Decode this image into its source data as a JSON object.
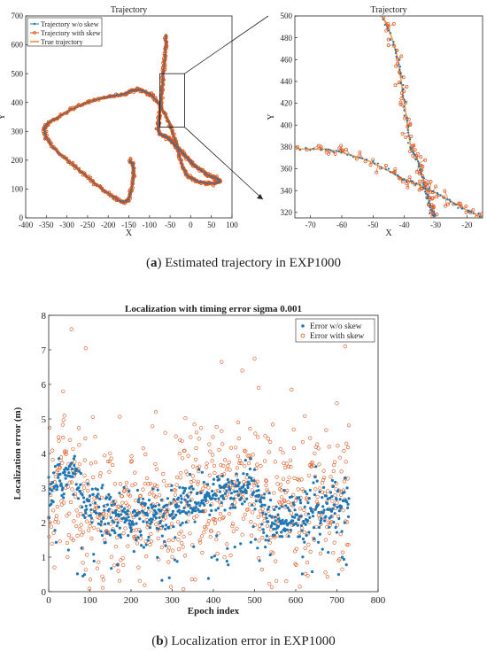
{
  "captions": {
    "a_tag": "a",
    "a_text": " Estimated trajectory in EXP1000",
    "b_tag": "b",
    "b_text": " Localization error in EXP1000"
  },
  "colors": {
    "wo_skew": "#1f77b4",
    "with_skew": "#d9541a",
    "true_traj": "#f4a65a",
    "axes": "#262626"
  },
  "chart_data": [
    {
      "type": "line",
      "title": "Trajectory",
      "xlabel": "X",
      "ylabel": "Y",
      "xlim": [
        -400,
        100
      ],
      "ylim": [
        0,
        700
      ],
      "xticks": [
        -400,
        -350,
        -300,
        -250,
        -200,
        -150,
        -100,
        -50,
        0,
        50,
        100
      ],
      "yticks": [
        0,
        100,
        200,
        300,
        400,
        500,
        600,
        700
      ],
      "legend": {
        "position": "top-left",
        "entries": [
          "Trajectory w/o skew",
          "Trajectory with skew",
          "True trajectory"
        ]
      },
      "series": [
        {
          "name": "Trajectory w/o skew",
          "marker": "dot"
        },
        {
          "name": "Trajectory with skew",
          "marker": "circle"
        },
        {
          "name": "True trajectory",
          "marker": "line"
        }
      ],
      "path": {
        "x": [
          -60,
          -60,
          -62,
          -65,
          -68,
          -70,
          -72,
          -75,
          -78,
          -80,
          -75,
          -65,
          -58,
          -50,
          -40,
          -30,
          -20,
          -10,
          0,
          10,
          25,
          40,
          55,
          65,
          70,
          70,
          60,
          40,
          20,
          5,
          -10,
          -20,
          -28,
          -35,
          -45,
          -55,
          -70,
          -85,
          -100,
          -115,
          -130,
          -145,
          -160,
          -180,
          -200,
          -230,
          -260,
          -290,
          -320,
          -345,
          -355,
          -352,
          -340,
          -320,
          -295,
          -270,
          -245,
          -220,
          -195,
          -175,
          -160,
          -150,
          -145,
          -140,
          -138,
          -140,
          -148
        ],
        "y": [
          635,
          600,
          560,
          520,
          480,
          440,
          400,
          360,
          330,
          305,
          290,
          285,
          280,
          270,
          255,
          240,
          225,
          210,
          195,
          180,
          165,
          150,
          140,
          135,
          130,
          125,
          120,
          120,
          125,
          135,
          150,
          180,
          220,
          260,
          300,
          340,
          380,
          410,
          430,
          440,
          445,
          440,
          430,
          425,
          420,
          410,
          395,
          375,
          350,
          330,
          310,
          285,
          255,
          225,
          195,
          165,
          135,
          105,
          80,
          60,
          55,
          65,
          90,
          130,
          165,
          185,
          200
        ]
      }
    },
    {
      "type": "line",
      "title": "Trajectory",
      "xlabel": "X",
      "ylabel": "Y",
      "xlim": [
        -75,
        -15
      ],
      "ylim": [
        315,
        500
      ],
      "xticks": [
        -70,
        -60,
        -50,
        -40,
        -30,
        -20
      ],
      "yticks": [
        320,
        340,
        360,
        380,
        400,
        420,
        440,
        460,
        480,
        500
      ],
      "paths": [
        {
          "x": [
            -47,
            -44,
            -42,
            -41,
            -40,
            -39,
            -38,
            -36,
            -35,
            -34,
            -33,
            -32,
            -31,
            -30
          ],
          "y": [
            500,
            480,
            460,
            440,
            420,
            400,
            380,
            370,
            360,
            350,
            340,
            330,
            320,
            315
          ]
        },
        {
          "x": [
            -75,
            -65,
            -60,
            -52,
            -45,
            -40,
            -35,
            -30,
            -25,
            -20,
            -15
          ],
          "y": [
            378,
            378,
            375,
            368,
            358,
            350,
            345,
            338,
            330,
            322,
            316
          ]
        }
      ]
    },
    {
      "type": "scatter",
      "title": "Localization with timing error sigma 0.001",
      "xlabel": "Epoch index",
      "ylabel": "Localization error (m)",
      "xlim": [
        0,
        800
      ],
      "ylim": [
        0,
        8
      ],
      "xticks": [
        0,
        100,
        200,
        300,
        400,
        500,
        600,
        700,
        800
      ],
      "yticks": [
        0,
        1,
        2,
        3,
        4,
        5,
        6,
        7,
        8
      ],
      "legend": {
        "position": "top-right",
        "entries": [
          "Error w/o skew",
          "Error with skew"
        ]
      },
      "series": [
        {
          "name": "Error w/o skew",
          "marker": "filled-dot",
          "trend": {
            "x": [
              0,
              30,
              60,
              100,
              150,
              200,
              250,
              300,
              350,
              400,
              450,
              500,
              520,
              560,
              600,
              650,
              700,
              730
            ],
            "y": [
              2.8,
              3.3,
              3.4,
              2.5,
              2.2,
              2.1,
              2.2,
              2.4,
              2.6,
              2.8,
              2.9,
              3.1,
              2.3,
              2.0,
              2.2,
              2.4,
              2.6,
              2.7
            ]
          },
          "spread": 0.35
        },
        {
          "name": "Error with skew",
          "marker": "open-circle",
          "spread_low": 0.0,
          "spread_high": 5.2
        }
      ],
      "notable_points": {
        "x": [
          55,
          90,
          35,
          420,
          470,
          500,
          510,
          590,
          700,
          720,
          460,
          260
        ],
        "y": [
          7.6,
          7.05,
          5.8,
          6.65,
          6.4,
          6.75,
          5.9,
          5.85,
          5.45,
          7.1,
          4.9,
          5.2
        ]
      },
      "n_points": 730
    }
  ]
}
